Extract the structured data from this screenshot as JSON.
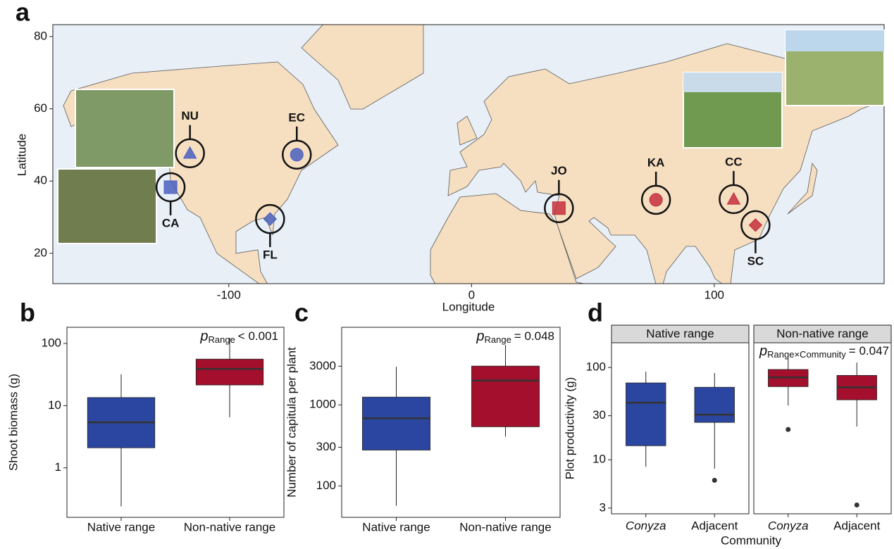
{
  "chart_data": [
    {
      "type": "map",
      "panel": "a",
      "xlabel": "Longitude",
      "ylabel": "Latitude",
      "xlim": [
        -172.5,
        170
      ],
      "ylim": [
        11.6,
        83.3
      ],
      "xticks": [
        -100,
        0,
        100
      ],
      "yticks": [
        20,
        40,
        60,
        80
      ],
      "sites": [
        {
          "name": "NU",
          "lon": -116,
          "lat": 47.7,
          "color": "#4a60bf",
          "marker": "triangle"
        },
        {
          "name": "EC",
          "lon": -72,
          "lat": 47.3,
          "color": "#4a60bf",
          "marker": "circle"
        },
        {
          "name": "CA",
          "lon": -124,
          "lat": 38.3,
          "color": "#4a60bf",
          "marker": "square"
        },
        {
          "name": "FL",
          "lon": -83,
          "lat": 29.5,
          "color": "#4a60bf",
          "marker": "diamond"
        },
        {
          "name": "JO",
          "lon": 36,
          "lat": 32.5,
          "color": "#c4303c",
          "marker": "square"
        },
        {
          "name": "KA",
          "lon": 76,
          "lat": 34.8,
          "color": "#c4303c",
          "marker": "circle"
        },
        {
          "name": "CC",
          "lon": 108,
          "lat": 35,
          "color": "#c4303c",
          "marker": "triangle"
        },
        {
          "name": "SC",
          "lon": 117,
          "lat": 27.8,
          "color": "#c4303c",
          "marker": "diamond"
        }
      ]
    },
    {
      "type": "box",
      "panel": "b",
      "ylabel": "Shoot biomass (g)",
      "log_scale": true,
      "ylim": [
        0.16,
        182
      ],
      "yticks": [
        1,
        10,
        100
      ],
      "categories": [
        "Native range",
        "Non-native range"
      ],
      "annotation": {
        "symbol": "p",
        "subscript": "Range",
        "text": "< 0.001"
      },
      "boxes": [
        {
          "color": "#2b46a0",
          "low": 0.24,
          "q1": 2.1,
          "median": 5.4,
          "q3": 13.5,
          "high": 32
        },
        {
          "color": "#a30f2c",
          "low": 6.5,
          "q1": 21.5,
          "median": 39,
          "q3": 56,
          "high": 123
        }
      ]
    },
    {
      "type": "box",
      "panel": "c",
      "ylabel": "Number of capitula per plant",
      "log_scale": true,
      "ylim": [
        41,
        9060
      ],
      "yticks": [
        100,
        300,
        1000,
        3000
      ],
      "categories": [
        "Native range",
        "Non-native range"
      ],
      "annotation": {
        "symbol": "p",
        "subscript": "Range",
        "text": "= 0.048"
      },
      "boxes": [
        {
          "color": "#2b46a0",
          "low": 57,
          "q1": 277,
          "median": 684,
          "q3": 1247,
          "high": 2950
        },
        {
          "color": "#a30f2c",
          "low": 405,
          "q1": 537,
          "median": 2000,
          "q3": 3010,
          "high": 5500
        }
      ]
    },
    {
      "type": "facet_box",
      "panel": "d",
      "ylabel": "Plot productivity (g)",
      "xlabel": "Community",
      "log_scale": true,
      "ylim": [
        2.6,
        185
      ],
      "yticks": [
        3,
        10,
        30,
        100
      ],
      "categories": [
        "Conyza",
        "Adjacent"
      ],
      "annotation": {
        "symbol": "p",
        "subscript": "Range×Community",
        "text": "= 0.047"
      },
      "facets": [
        {
          "name": "Native range",
          "boxes": [
            {
              "color": "#2b46a0",
              "low": 8.4,
              "q1": 14.2,
              "median": 41.5,
              "q3": 68,
              "high": 90
            },
            {
              "color": "#2b46a0",
              "low": 8,
              "q1": 25.4,
              "median": 30.8,
              "q3": 61,
              "high": 87,
              "outliers": [
                6.0
              ]
            }
          ]
        },
        {
          "name": "Non-native range",
          "boxes": [
            {
              "color": "#a30f2c",
              "low": 38.7,
              "q1": 62,
              "median": 78,
              "q3": 95,
              "high": 125,
              "outliers": [
                21.3
              ]
            },
            {
              "color": "#a30f2c",
              "low": 22.9,
              "q1": 44.6,
              "median": 61,
              "q3": 82,
              "high": 113,
              "outliers": [
                3.24
              ]
            }
          ]
        }
      ]
    }
  ]
}
